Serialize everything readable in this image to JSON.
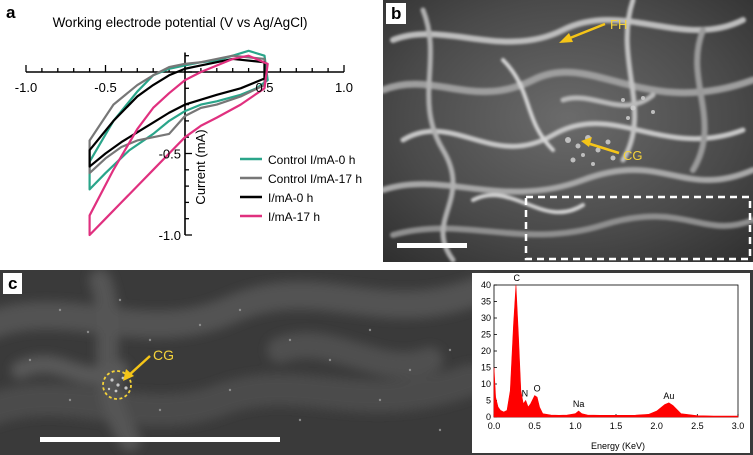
{
  "panels": {
    "a": {
      "letter": "a"
    },
    "b": {
      "letter": "b",
      "labels": {
        "fh": "FH",
        "cg": "CG"
      },
      "colors": {
        "label": "#f5d33a",
        "arrow": "#f5c518"
      }
    },
    "c": {
      "letter": "c",
      "labels": {
        "cg": "CG"
      },
      "colors": {
        "label": "#f5d33a",
        "arrow": "#f5c518"
      }
    }
  },
  "chart_data": [
    {
      "type": "line",
      "title": "Working electrode potential (V vs Ag/AgCl)",
      "xlabel": "Working electrode potential (V vs Ag/AgCl)",
      "ylabel": "Current (mA)",
      "xlim": [
        -1.0,
        1.0
      ],
      "ylim": [
        -1.0,
        0.2
      ],
      "x_ticks": [
        "-1.0",
        "-0.5",
        "0.5",
        "1.0"
      ],
      "x_tick_values": [
        -1.0,
        -0.5,
        0.5,
        1.0
      ],
      "y_ticks": [
        "-0.5",
        "-1.0"
      ],
      "y_tick_values": [
        -0.5,
        -1.0
      ],
      "legend_position": "bottom-right",
      "grid": false,
      "series": [
        {
          "name": "Control I/mA-0 h",
          "color": "#2aa58a",
          "x": [
            -0.6,
            -0.5,
            -0.35,
            -0.2,
            -0.1,
            0.0,
            0.1,
            0.2,
            0.35,
            0.45,
            0.52,
            0.5,
            0.4,
            0.3,
            0.2,
            0.1,
            0.0,
            -0.1,
            -0.2,
            -0.3,
            -0.45,
            -0.6
          ],
          "y": [
            -0.72,
            -0.62,
            -0.48,
            -0.38,
            -0.3,
            -0.24,
            -0.2,
            -0.18,
            -0.14,
            -0.1,
            -0.05,
            0.1,
            0.13,
            0.1,
            0.07,
            0.06,
            0.04,
            0.02,
            -0.02,
            -0.12,
            -0.3,
            -0.55
          ]
        },
        {
          "name": "Control I/mA-17 h",
          "color": "#777777",
          "x": [
            -0.6,
            -0.5,
            -0.4,
            -0.3,
            -0.2,
            -0.1,
            0.0,
            0.1,
            0.2,
            0.35,
            0.5,
            0.5,
            0.3,
            0.1,
            0.0,
            -0.1,
            -0.2,
            -0.3,
            -0.45,
            -0.6
          ],
          "y": [
            -0.62,
            -0.53,
            -0.46,
            -0.42,
            -0.4,
            -0.38,
            -0.27,
            -0.22,
            -0.2,
            -0.15,
            -0.08,
            0.08,
            0.1,
            0.06,
            0.05,
            0.03,
            -0.02,
            -0.08,
            -0.2,
            -0.42
          ]
        },
        {
          "name": "I/mA-0 h",
          "color": "#000000",
          "x": [
            -0.6,
            -0.5,
            -0.4,
            -0.3,
            -0.2,
            -0.1,
            0.0,
            0.1,
            0.2,
            0.35,
            0.5,
            0.5,
            0.3,
            0.1,
            0.0,
            -0.1,
            -0.2,
            -0.3,
            -0.45,
            -0.6
          ],
          "y": [
            -0.58,
            -0.5,
            -0.43,
            -0.37,
            -0.31,
            -0.25,
            -0.2,
            -0.17,
            -0.14,
            -0.1,
            -0.04,
            0.06,
            0.08,
            0.04,
            0.02,
            -0.02,
            -0.08,
            -0.15,
            -0.3,
            -0.48
          ]
        },
        {
          "name": "I/mA-17 h",
          "color": "#e0307f",
          "x": [
            -0.6,
            -0.5,
            -0.4,
            -0.3,
            -0.2,
            -0.1,
            0.0,
            0.1,
            0.2,
            0.35,
            0.5,
            0.52,
            0.4,
            0.3,
            0.2,
            0.1,
            0.0,
            -0.1,
            -0.2,
            -0.3,
            -0.45,
            -0.6
          ],
          "y": [
            -1.0,
            -0.9,
            -0.8,
            -0.7,
            -0.6,
            -0.5,
            -0.4,
            -0.33,
            -0.28,
            -0.2,
            -0.1,
            0.05,
            0.1,
            0.08,
            0.04,
            0.0,
            -0.05,
            -0.13,
            -0.22,
            -0.35,
            -0.6,
            -0.88
          ]
        }
      ]
    },
    {
      "type": "area",
      "xlabel": "Energy (KeV)",
      "ylabel": "",
      "xlim": [
        0.0,
        3.0
      ],
      "ylim": [
        0,
        40
      ],
      "x_ticks": [
        "0.0",
        "0.5",
        "1.0",
        "1.5",
        "2.0",
        "2.5",
        "3.0"
      ],
      "x_tick_values": [
        0.0,
        0.5,
        1.0,
        1.5,
        2.0,
        2.5,
        3.0
      ],
      "y_ticks": [
        "0",
        "5",
        "10",
        "15",
        "20",
        "25",
        "30",
        "35",
        "40"
      ],
      "y_tick_values": [
        0,
        5,
        10,
        15,
        20,
        25,
        30,
        35,
        40
      ],
      "grid": false,
      "series": [
        {
          "color": "#ff0000",
          "x": [
            0.0,
            0.02,
            0.05,
            0.08,
            0.12,
            0.16,
            0.2,
            0.24,
            0.27,
            0.3,
            0.33,
            0.36,
            0.39,
            0.42,
            0.45,
            0.5,
            0.53,
            0.56,
            0.6,
            0.7,
            0.8,
            0.9,
            1.0,
            1.04,
            1.08,
            1.15,
            1.3,
            1.5,
            1.7,
            1.9,
            2.0,
            2.1,
            2.15,
            2.2,
            2.3,
            2.5,
            2.7,
            3.0
          ],
          "y": [
            15,
            6,
            3,
            2,
            1.5,
            2,
            8,
            28,
            40,
            25,
            8,
            4,
            5,
            3,
            4,
            6.5,
            6,
            3,
            1,
            0.6,
            0.5,
            0.6,
            1,
            1.8,
            1,
            0.6,
            0.5,
            0.5,
            0.5,
            0.8,
            1.8,
            3.8,
            4.3,
            3.5,
            1,
            0.4,
            0.3,
            0.3
          ]
        }
      ],
      "annotations": [
        {
          "text": "C",
          "x": 0.28,
          "y": 40
        },
        {
          "text": "N",
          "x": 0.38,
          "y": 5
        },
        {
          "text": "O",
          "x": 0.53,
          "y": 6.5
        },
        {
          "text": "Na",
          "x": 1.04,
          "y": 1.8
        },
        {
          "text": "Au",
          "x": 2.15,
          "y": 4.3
        }
      ]
    }
  ]
}
